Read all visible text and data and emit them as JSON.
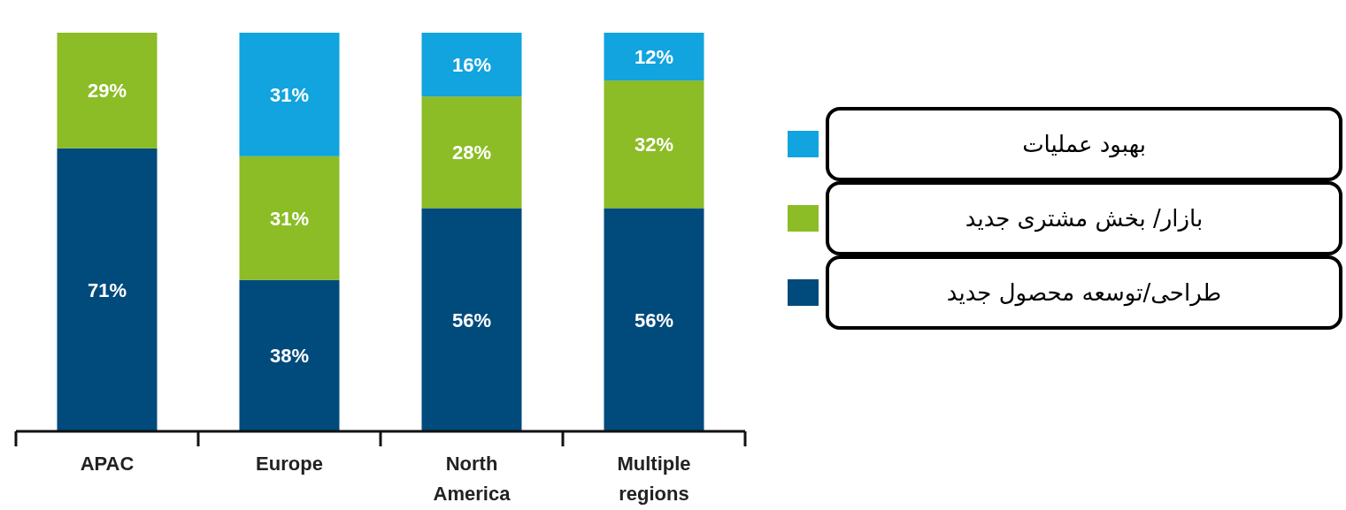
{
  "chart_data": {
    "type": "bar",
    "stacked": true,
    "categories": [
      "APAC",
      "Europe",
      "North America",
      "Multiple regions"
    ],
    "series": [
      {
        "name": "طراحی/توسعه محصول جدید",
        "color": "#004a7c",
        "values": [
          71,
          38,
          56,
          56
        ],
        "value_labels": [
          "71%",
          "38%",
          "56%",
          "56%"
        ]
      },
      {
        "name": "بازار/ بخش مشتری جدید",
        "color": "#8cbc26",
        "values": [
          29,
          31,
          28,
          32
        ],
        "value_labels": [
          "29%",
          "31%",
          "28%",
          "32%"
        ]
      },
      {
        "name": "بهبود عملیات",
        "color": "#11a4de",
        "values": [
          null,
          31,
          16,
          12
        ],
        "value_labels": [
          null,
          "31%",
          "16%",
          "12%"
        ]
      }
    ],
    "legend": "right"
  }
}
